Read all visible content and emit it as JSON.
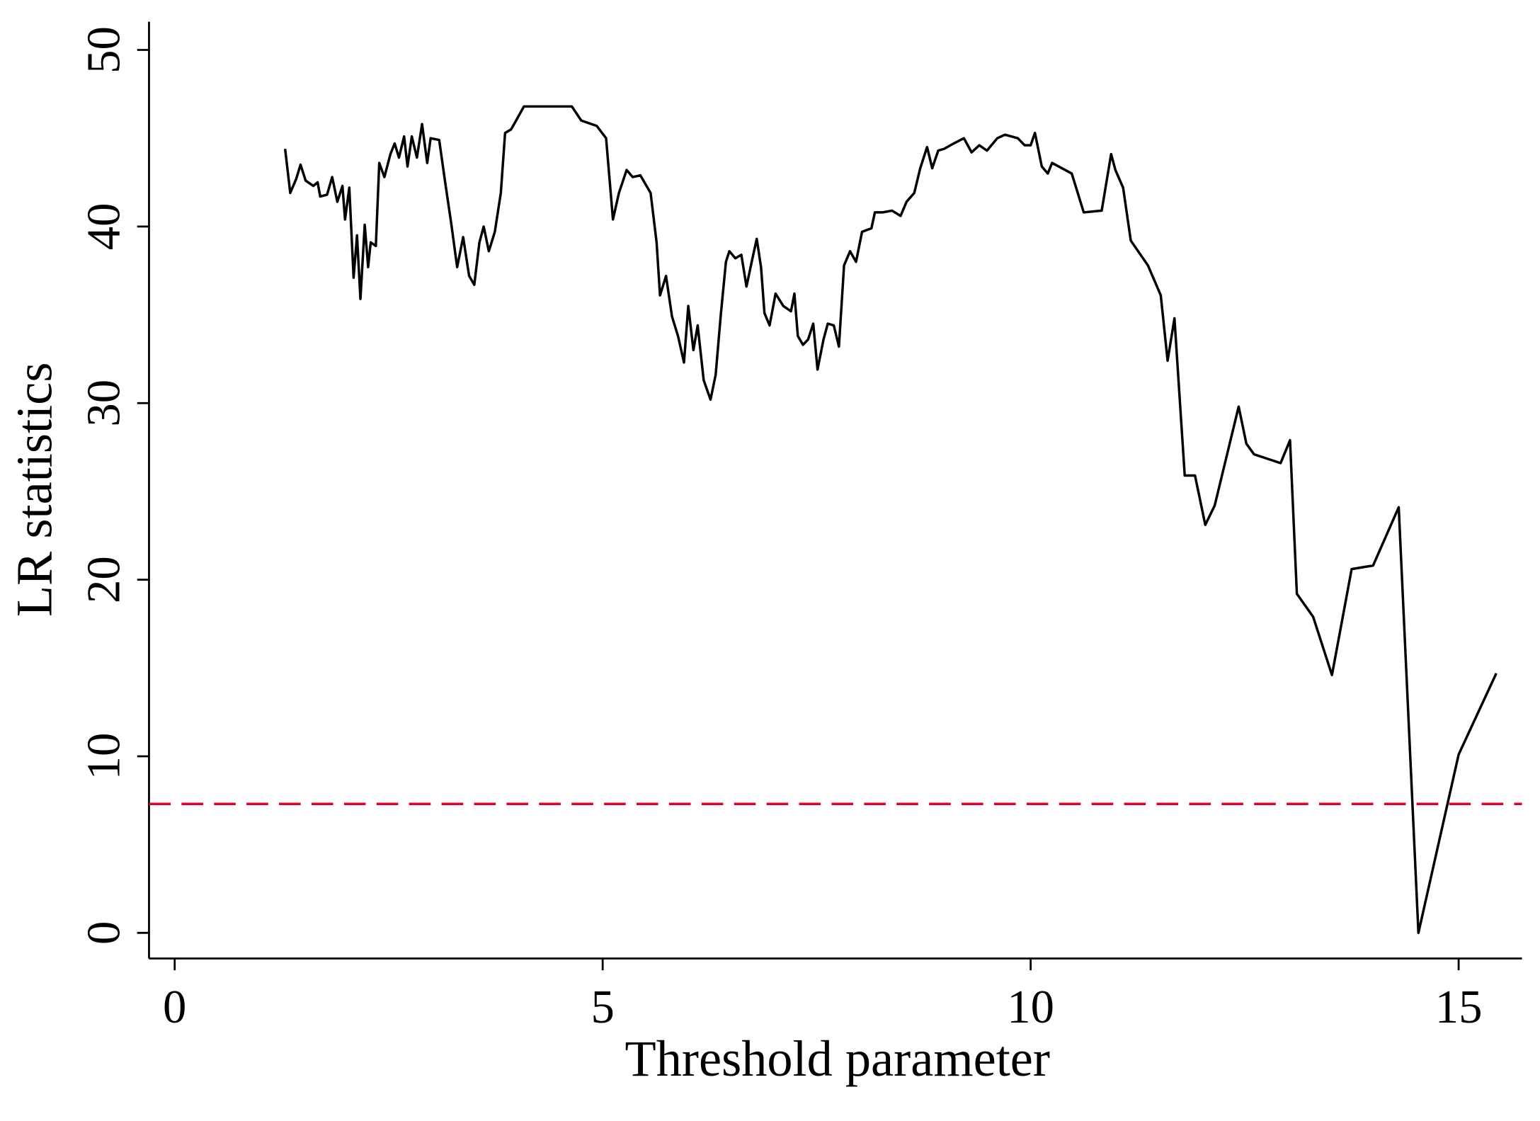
{
  "chart_data": {
    "type": "line",
    "x_label": "Threshold parameter",
    "y_label": "LR statistics",
    "xlim": [
      -0.3,
      15.74
    ],
    "ylim": [
      -1.45,
      51.6
    ],
    "xticks": [
      0,
      5,
      10,
      15
    ],
    "yticks": [
      0,
      10,
      20,
      30,
      40,
      50
    ],
    "hline": {
      "value": 7.3,
      "color": "#e4002b",
      "style": "dashed"
    },
    "x": [
      1.29,
      1.35,
      1.42,
      1.47,
      1.53,
      1.62,
      1.67,
      1.7,
      1.78,
      1.84,
      1.9,
      1.96,
      1.99,
      2.04,
      2.09,
      2.13,
      2.17,
      2.22,
      2.26,
      2.29,
      2.35,
      2.39,
      2.45,
      2.52,
      2.57,
      2.62,
      2.68,
      2.72,
      2.77,
      2.83,
      2.89,
      2.95,
      2.99,
      3.09,
      3.16,
      3.23,
      3.3,
      3.37,
      3.44,
      3.5,
      3.56,
      3.61,
      3.67,
      3.74,
      3.81,
      3.86,
      3.93,
      4.0,
      4.08,
      4.29,
      4.64,
      4.75,
      4.93,
      5.04,
      5.12,
      5.19,
      5.28,
      5.35,
      5.44,
      5.56,
      5.63,
      5.67,
      5.74,
      5.81,
      5.88,
      5.95,
      6.0,
      6.06,
      6.11,
      6.18,
      6.26,
      6.32,
      6.38,
      6.44,
      6.48,
      6.55,
      6.62,
      6.68,
      6.75,
      6.8,
      6.85,
      6.89,
      6.95,
      7.02,
      7.11,
      7.2,
      7.24,
      7.28,
      7.34,
      7.4,
      7.46,
      7.51,
      7.58,
      7.63,
      7.7,
      7.76,
      7.82,
      7.89,
      7.96,
      8.03,
      8.14,
      8.18,
      8.27,
      8.38,
      8.48,
      8.55,
      8.64,
      8.71,
      8.79,
      8.85,
      8.92,
      8.99,
      9.1,
      9.22,
      9.31,
      9.4,
      9.49,
      9.61,
      9.7,
      9.85,
      9.93,
      10.0,
      10.05,
      10.13,
      10.2,
      10.25,
      10.48,
      10.62,
      10.83,
      10.94,
      10.99,
      11.08,
      11.17,
      11.37,
      11.52,
      11.6,
      11.68,
      11.8,
      11.92,
      12.04,
      12.15,
      12.27,
      12.43,
      12.52,
      12.61,
      12.92,
      13.03,
      13.11,
      13.3,
      13.52,
      13.75,
      14.0,
      14.3,
      14.53,
      15.0,
      15.44
    ],
    "series": [
      {
        "color": "#000000",
        "values": [
          44.4,
          41.9,
          42.7,
          43.5,
          42.6,
          42.3,
          42.5,
          41.7,
          41.8,
          42.8,
          41.4,
          42.3,
          40.4,
          42.2,
          37.1,
          39.5,
          35.9,
          40.1,
          37.7,
          39.1,
          38.9,
          43.6,
          42.8,
          44.1,
          44.7,
          43.9,
          45.1,
          43.4,
          45.1,
          43.9,
          45.8,
          43.6,
          45.0,
          44.9,
          42.5,
          40.2,
          37.7,
          39.4,
          37.2,
          36.7,
          39.1,
          40.0,
          38.6,
          39.7,
          41.9,
          45.3,
          45.5,
          46.1,
          46.8,
          46.8,
          46.8,
          46.0,
          45.7,
          45.0,
          40.4,
          41.9,
          43.2,
          42.8,
          42.9,
          41.9,
          39.1,
          36.1,
          37.2,
          34.9,
          33.8,
          32.3,
          35.5,
          33.0,
          34.4,
          31.3,
          30.2,
          31.6,
          35.0,
          38.0,
          38.6,
          38.2,
          38.4,
          36.6,
          38.2,
          39.3,
          37.7,
          35.1,
          34.4,
          36.2,
          35.5,
          35.2,
          36.2,
          33.8,
          33.3,
          33.6,
          34.5,
          31.9,
          33.6,
          34.5,
          34.4,
          33.2,
          37.8,
          38.6,
          38.0,
          39.7,
          39.9,
          40.8,
          40.8,
          40.9,
          40.6,
          41.4,
          41.9,
          43.3,
          44.5,
          43.3,
          44.3,
          44.4,
          44.7,
          45.0,
          44.2,
          44.6,
          44.3,
          45.0,
          45.2,
          45.0,
          44.6,
          44.6,
          45.3,
          43.4,
          43.0,
          43.6,
          43.0,
          40.8,
          40.9,
          44.1,
          43.2,
          42.2,
          39.2,
          37.8,
          36.1,
          32.4,
          34.8,
          25.9,
          25.9,
          23.1,
          24.2,
          26.6,
          29.8,
          27.7,
          27.1,
          26.6,
          27.9,
          19.2,
          17.9,
          14.6,
          20.6,
          20.8,
          24.1,
          0,
          10.1,
          14.7
        ]
      }
    ]
  }
}
